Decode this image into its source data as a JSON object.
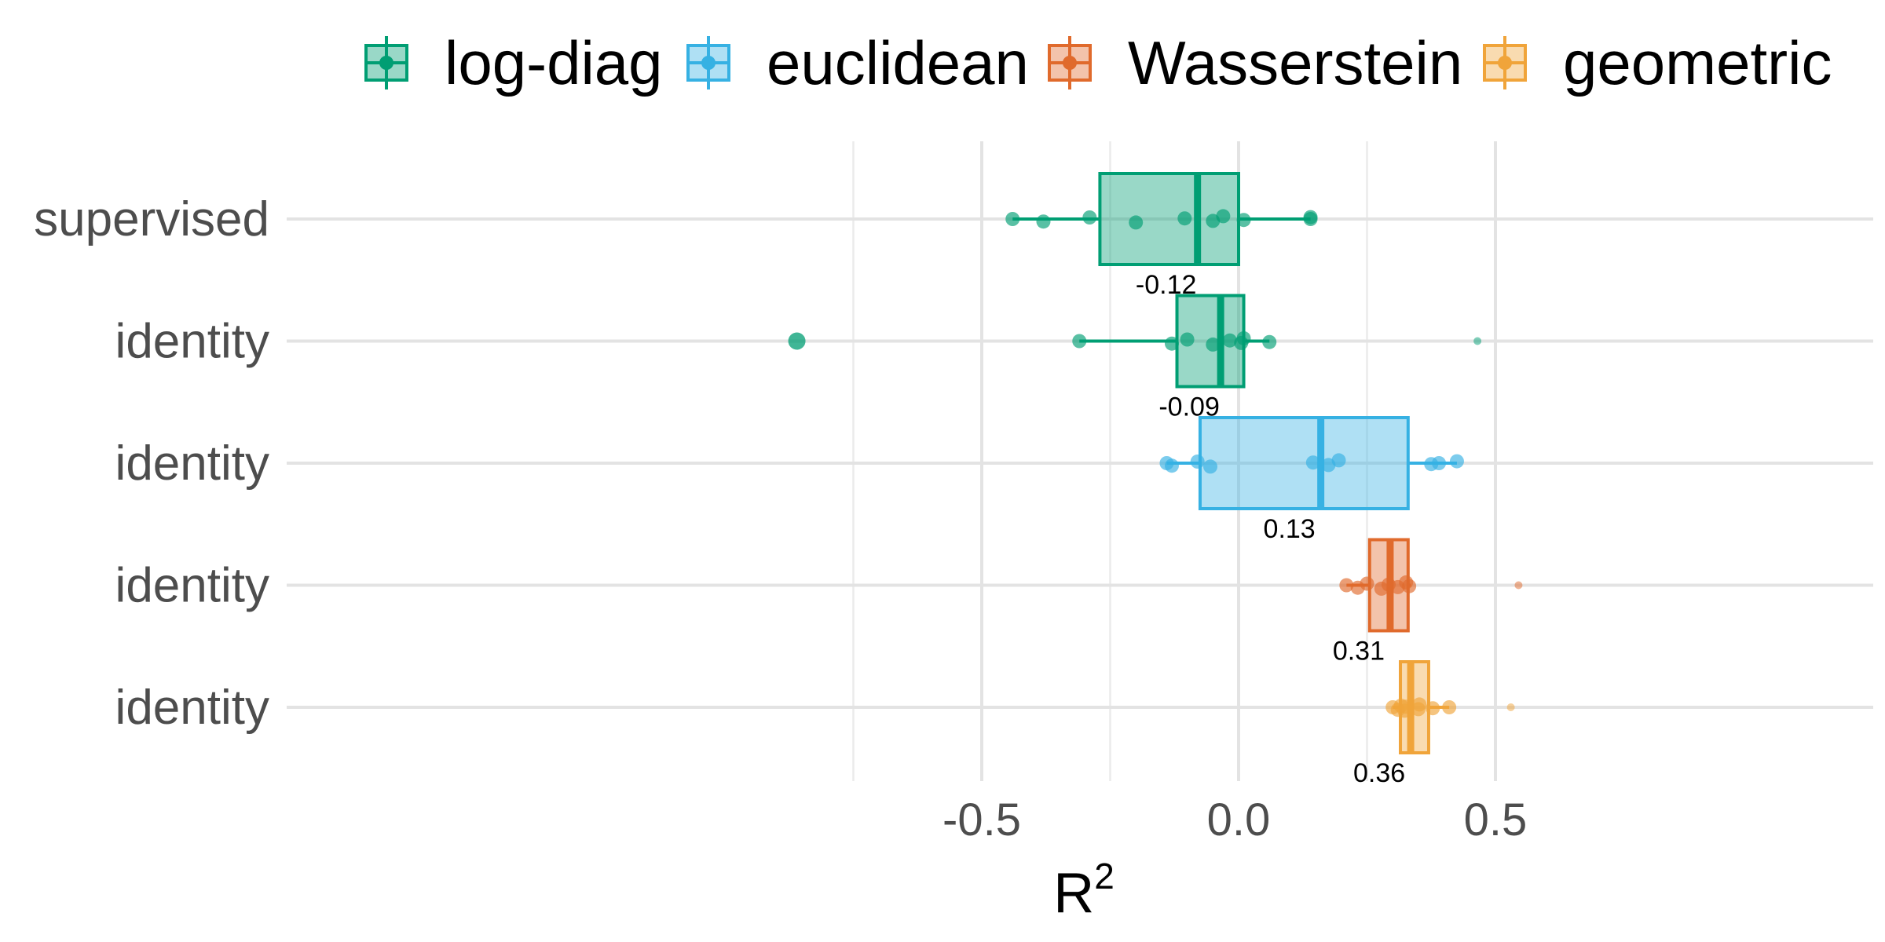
{
  "chart_data": {
    "type": "boxplot",
    "orientation": "horizontal",
    "xlabel_base": "R",
    "xlabel_sup": "2",
    "xlim": [
      -0.93,
      0.62
    ],
    "xticks": [
      -0.5,
      0.0,
      0.5
    ],
    "xtick_labels": [
      "-0.5",
      "0.0",
      "0.5"
    ],
    "minor_grid": [
      -0.75,
      -0.25,
      0.25
    ],
    "grid": true,
    "legend": {
      "position": "top"
    },
    "legend_entries": [
      {
        "label": "log-diag",
        "color": "#009E73"
      },
      {
        "label": "euclidean",
        "color": "#36B1E3"
      },
      {
        "label": "Wasserstein",
        "color": "#E06A2C"
      },
      {
        "label": "geometric",
        "color": "#F0A43A"
      }
    ],
    "rows": [
      {
        "category": "supervised",
        "series": "log-diag",
        "color": "#009E73",
        "q1": -0.27,
        "median": -0.08,
        "q3": 0.0,
        "whisker_low": -0.44,
        "whisker_high": 0.14,
        "median_label": "-0.12",
        "points": [
          -0.44,
          -0.38,
          -0.29,
          -0.2,
          -0.105,
          -0.05,
          -0.03,
          0.01,
          0.14,
          0.14
        ],
        "outliers": []
      },
      {
        "category": "identity",
        "series": "log-diag",
        "color": "#009E73",
        "q1": -0.12,
        "median": -0.035,
        "q3": 0.01,
        "whisker_low": -0.31,
        "whisker_high": 0.06,
        "median_label": "-0.09",
        "points": [
          -0.31,
          -0.13,
          -0.1,
          -0.05,
          -0.017,
          0.005,
          0.01,
          0.06
        ],
        "outliers": [
          -0.86,
          0.465
        ]
      },
      {
        "category": "identity",
        "series": "euclidean",
        "color": "#36B1E3",
        "q1": -0.075,
        "median": 0.16,
        "q3": 0.33,
        "whisker_low": -0.14,
        "whisker_high": 0.425,
        "median_label": "0.13",
        "points": [
          -0.14,
          -0.13,
          -0.08,
          -0.055,
          0.145,
          0.175,
          0.195,
          0.375,
          0.39,
          0.425
        ],
        "outliers": []
      },
      {
        "category": "identity",
        "series": "Wasserstein",
        "color": "#E06A2C",
        "q1": 0.255,
        "median": 0.295,
        "q3": 0.33,
        "whisker_low": 0.21,
        "whisker_high": 0.335,
        "median_label": "0.31",
        "points": [
          0.21,
          0.232,
          0.25,
          0.278,
          0.292,
          0.31,
          0.326,
          0.332
        ],
        "outliers": [
          0.545
        ]
      },
      {
        "category": "identity",
        "series": "geometric",
        "color": "#F0A43A",
        "q1": 0.315,
        "median": 0.335,
        "q3": 0.37,
        "whisker_low": 0.3,
        "whisker_high": 0.41,
        "median_label": "0.36",
        "points": [
          0.3,
          0.31,
          0.316,
          0.323,
          0.325,
          0.35,
          0.352,
          0.378,
          0.41
        ],
        "outliers": [
          0.53
        ]
      }
    ]
  }
}
